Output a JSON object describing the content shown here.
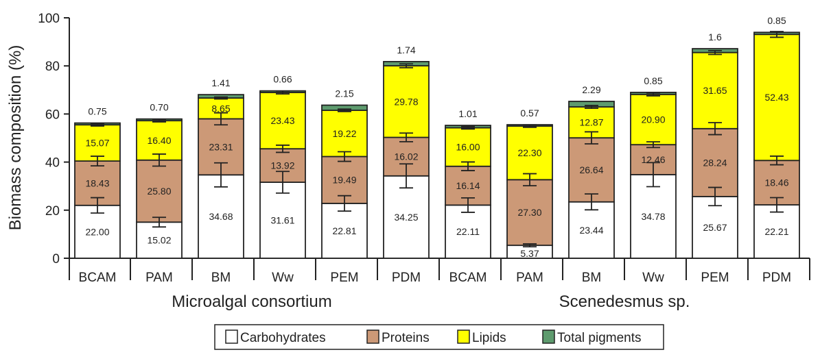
{
  "chart_data": {
    "type": "bar",
    "stacked": true,
    "ylabel": "Biomass composition (%)",
    "ylim": [
      0,
      100
    ],
    "yticks": [
      0,
      20,
      40,
      60,
      80,
      100
    ],
    "groups": [
      {
        "label": "Microalgal consortium",
        "categories": [
          "BCAM",
          "PAM",
          "BM",
          "Ww",
          "PEM",
          "PDM"
        ]
      },
      {
        "label": "Scenedesmus sp.",
        "categories": [
          "BCAM",
          "PAM",
          "BM",
          "Ww",
          "PEM",
          "PDM"
        ]
      }
    ],
    "categories": [
      "BCAM",
      "PAM",
      "BM",
      "Ww",
      "PEM",
      "PDM",
      "BCAM",
      "PAM",
      "BM",
      "Ww",
      "PEM",
      "PDM"
    ],
    "series": [
      {
        "name": "Carbohydrates",
        "color": "#ffffff",
        "values": [
          22.0,
          15.02,
          34.68,
          31.61,
          22.81,
          34.25,
          22.11,
          5.37,
          23.44,
          34.78,
          25.67,
          22.21
        ],
        "labels": [
          "22.00",
          "15.02",
          "34.68",
          "31.61",
          "22.81",
          "34.25",
          "22.11",
          "5.37",
          "23.44",
          "34.78",
          "25.67",
          "22.21"
        ],
        "errors": [
          3.2,
          2.0,
          5.0,
          4.5,
          3.2,
          5.0,
          3.0,
          0.6,
          3.3,
          5.0,
          3.8,
          3.0
        ]
      },
      {
        "name": "Proteins",
        "color": "#cc9977",
        "values": [
          18.43,
          25.8,
          23.31,
          13.92,
          19.49,
          16.02,
          16.14,
          27.3,
          26.64,
          12.46,
          28.24,
          18.46
        ],
        "labels": [
          "18.43",
          "25.80",
          "23.31",
          "13.92",
          "19.49",
          "16.02",
          "16.14",
          "27.30",
          "26.64",
          "12.46",
          "28.24",
          "18.46"
        ],
        "errors": [
          2.0,
          2.5,
          2.5,
          1.5,
          2.0,
          1.8,
          1.8,
          2.5,
          2.5,
          1.2,
          2.5,
          1.8
        ]
      },
      {
        "name": "Lipids",
        "color": "#ffff00",
        "values": [
          15.07,
          16.4,
          8.65,
          23.43,
          19.22,
          29.78,
          16.0,
          22.3,
          12.87,
          20.9,
          31.65,
          52.43
        ],
        "labels": [
          "15.07",
          "16.40",
          "8.65",
          "23.43",
          "19.22",
          "29.78",
          "16.00",
          "22.30",
          "12.87",
          "20.90",
          "31.65",
          "52.43"
        ],
        "errors": [
          0.5,
          0.5,
          0.4,
          0.6,
          0.5,
          0.8,
          0.5,
          0.5,
          0.6,
          0.6,
          0.8,
          1.2
        ]
      },
      {
        "name": "Total pigments",
        "color": "#5e9b6e",
        "values": [
          0.75,
          0.7,
          1.41,
          0.66,
          2.15,
          1.74,
          1.01,
          0.57,
          2.29,
          0.85,
          1.6,
          0.85
        ],
        "labels": [
          "0.75",
          "0.70",
          "1.41",
          "0.66",
          "2.15",
          "1.74",
          "1.01",
          "0.57",
          "2.29",
          "0.85",
          "1.6",
          "0.85"
        ]
      }
    ],
    "legend": {
      "position": "bottom",
      "items": [
        "Carbohydrates",
        "Proteins",
        "Lipids",
        "Total pigments"
      ]
    }
  }
}
